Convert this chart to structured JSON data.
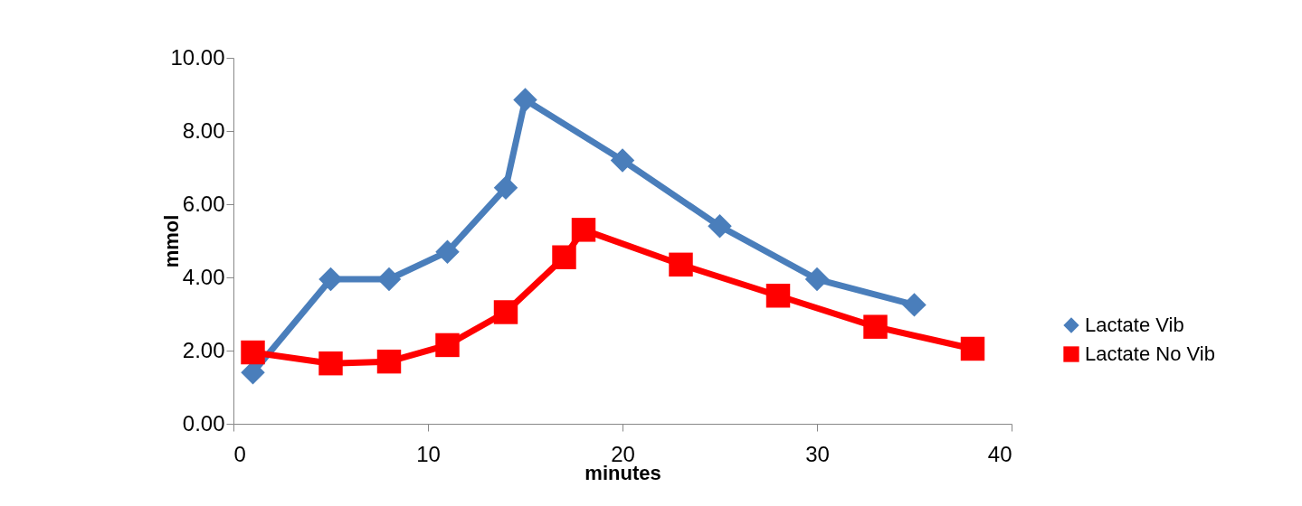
{
  "chart_data": {
    "type": "line",
    "xlabel": "minutes",
    "ylabel": "mmol",
    "xlim": [
      0,
      40
    ],
    "xticks": [
      0,
      10,
      20,
      30,
      40
    ],
    "ylim": [
      0,
      10
    ],
    "yticks": [
      {
        "value": 0,
        "label": "0.00"
      },
      {
        "value": 2,
        "label": "2.00"
      },
      {
        "value": 4,
        "label": "4.00"
      },
      {
        "value": 6,
        "label": "6.00"
      },
      {
        "value": 8,
        "label": "8.00"
      },
      {
        "value": 10,
        "label": "10.00"
      }
    ],
    "grid": false,
    "legend": "right",
    "line_style": "solid",
    "series": [
      {
        "name": "Lactate Vib",
        "color": "#4a7ebb",
        "marker": "diamond",
        "x": [
          1,
          5,
          8,
          11,
          14,
          15,
          20,
          25,
          30,
          35
        ],
        "values": [
          1.4,
          3.95,
          3.95,
          4.7,
          6.45,
          8.85,
          7.2,
          5.4,
          3.95,
          3.25
        ]
      },
      {
        "name": "Lactate No Vib",
        "color": "#ff0000",
        "marker": "square",
        "x": [
          1,
          5,
          8,
          11,
          14,
          17,
          18,
          23,
          28,
          33,
          38
        ],
        "values": [
          1.95,
          1.65,
          1.7,
          2.15,
          3.05,
          4.55,
          5.3,
          4.35,
          3.5,
          2.65,
          2.05
        ]
      }
    ]
  }
}
